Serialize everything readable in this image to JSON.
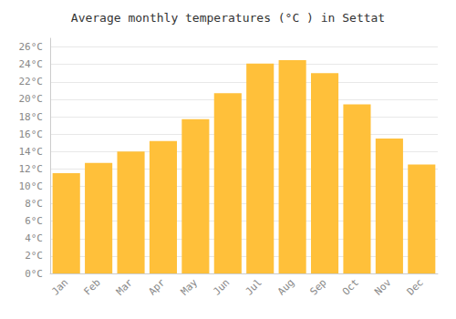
{
  "chart_data": {
    "type": "bar",
    "title": "Average monthly temperatures (°C ) in Settat",
    "categories": [
      "Jan",
      "Feb",
      "Mar",
      "Apr",
      "May",
      "Jun",
      "Jul",
      "Aug",
      "Sep",
      "Oct",
      "Nov",
      "Dec"
    ],
    "values": [
      11.5,
      12.7,
      14.0,
      15.2,
      17.7,
      20.7,
      24.1,
      24.5,
      23.0,
      19.4,
      15.5,
      12.5
    ],
    "color": "#FFC03A",
    "ylim": [
      0,
      27
    ],
    "yticks": [
      {
        "value": 0,
        "label": "0°C"
      },
      {
        "value": 2,
        "label": "2°C"
      },
      {
        "value": 4,
        "label": "4°C"
      },
      {
        "value": 6,
        "label": "6°C"
      },
      {
        "value": 8,
        "label": "8°C"
      },
      {
        "value": 10,
        "label": "10°C"
      },
      {
        "value": 12,
        "label": "12°C"
      },
      {
        "value": 14,
        "label": "14°C"
      },
      {
        "value": 16,
        "label": "16°C"
      },
      {
        "value": 18,
        "label": "18°C"
      },
      {
        "value": 20,
        "label": "20°C"
      },
      {
        "value": 22,
        "label": "22°C"
      },
      {
        "value": 24,
        "label": "24°C"
      },
      {
        "value": 26,
        "label": "26°C"
      }
    ],
    "grid": true
  }
}
